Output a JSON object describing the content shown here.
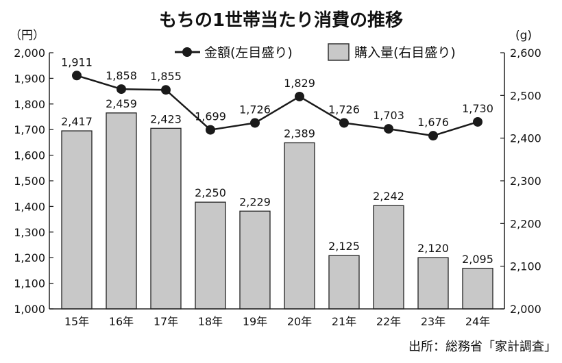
{
  "chart_data": {
    "type": "bar+line",
    "title": "もちの1世帯当たり消費の推移",
    "left_unit": "（円）",
    "right_unit": "(g)",
    "categories": [
      "15年",
      "16年",
      "17年",
      "18年",
      "19年",
      "20年",
      "21年",
      "22年",
      "23年",
      "24年"
    ],
    "series": [
      {
        "name": "金額(左目盛り)",
        "type": "line",
        "axis": "left",
        "color": "#1a1a1a",
        "values": [
          1911,
          1858,
          1855,
          1699,
          1726,
          1829,
          1726,
          1703,
          1676,
          1730
        ],
        "labels": [
          "1,911",
          "1,858",
          "1,855",
          "1,699",
          "1,726",
          "1,829",
          "1,726",
          "1,703",
          "1,676",
          "1,730"
        ]
      },
      {
        "name": "購入量(右目盛り)",
        "type": "bar",
        "axis": "right",
        "color": "#c8c8c8",
        "values": [
          2417,
          2459,
          2423,
          2250,
          2229,
          2389,
          2125,
          2242,
          2120,
          2095
        ],
        "labels": [
          "2,417",
          "2,459",
          "2,423",
          "2,250",
          "2,229",
          "2,389",
          "2,125",
          "2,242",
          "2,120",
          "2,095"
        ]
      }
    ],
    "left_axis": {
      "ylim": [
        1000,
        2000
      ],
      "ticks": [
        "1,000",
        "1,100",
        "1,200",
        "1,300",
        "1,400",
        "1,500",
        "1,600",
        "1,700",
        "1,800",
        "1,900",
        "2,000"
      ]
    },
    "right_axis": {
      "ylim": [
        2000,
        2600
      ],
      "ticks": [
        "2,000",
        "2,100",
        "2,200",
        "2,300",
        "2,400",
        "2,500",
        "2,600"
      ]
    },
    "legend_placement": "top",
    "source": "出所：総務省「家計調査」"
  }
}
